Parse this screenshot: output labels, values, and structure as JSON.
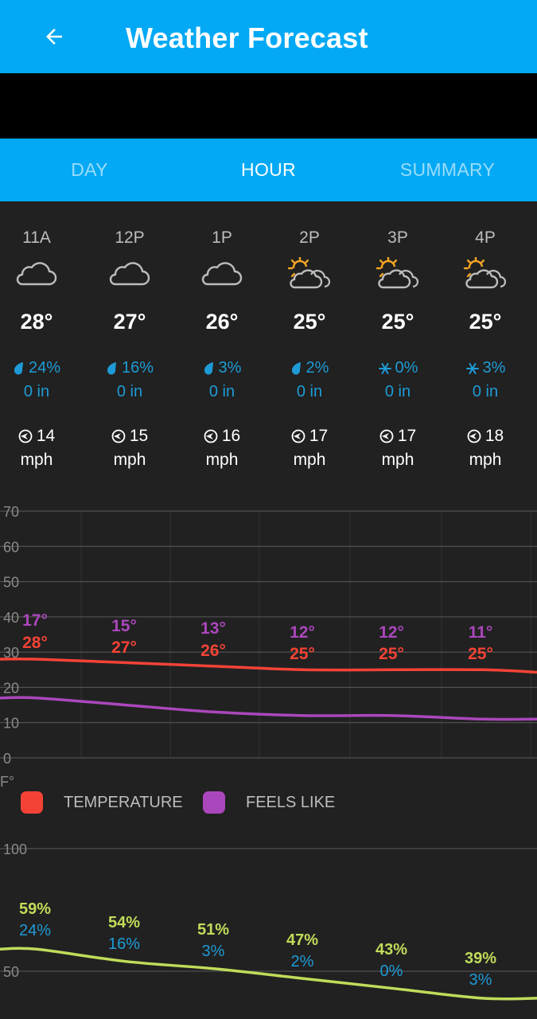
{
  "appbar": {
    "title": "Weather Forecast",
    "back_icon": "arrow-left-icon"
  },
  "tabs": [
    {
      "label": "DAY",
      "active": false
    },
    {
      "label": "HOUR",
      "active": true
    },
    {
      "label": "SUMMARY",
      "active": false
    }
  ],
  "hours": [
    {
      "time": "11A",
      "icon": "cloud-icon",
      "temp": "28°",
      "precip_type": "rain-drop-icon",
      "precip": "24%",
      "amount": "0 in",
      "wind": "14",
      "wind_unit": "mph"
    },
    {
      "time": "12P",
      "icon": "cloud-icon",
      "temp": "27°",
      "precip_type": "rain-drop-icon",
      "precip": "16%",
      "amount": "0 in",
      "wind": "15",
      "wind_unit": "mph"
    },
    {
      "time": "1P",
      "icon": "cloud-icon",
      "temp": "26°",
      "precip_type": "rain-drop-icon",
      "precip": "3%",
      "amount": "0 in",
      "wind": "16",
      "wind_unit": "mph"
    },
    {
      "time": "2P",
      "icon": "partly-sunny-icon",
      "temp": "25°",
      "precip_type": "rain-drop-icon",
      "precip": "2%",
      "amount": "0 in",
      "wind": "17",
      "wind_unit": "mph"
    },
    {
      "time": "3P",
      "icon": "partly-sunny-icon",
      "temp": "25°",
      "precip_type": "snowflake-icon",
      "precip": "0%",
      "amount": "0 in",
      "wind": "17",
      "wind_unit": "mph"
    },
    {
      "time": "4P",
      "icon": "partly-sunny-icon",
      "temp": "25°",
      "precip_type": "snowflake-icon",
      "precip": "3%",
      "amount": "0 in",
      "wind": "18",
      "wind_unit": "mph"
    }
  ],
  "colors": {
    "accent": "#03A9F4",
    "temperature": "#F44336",
    "feels_like": "#AB47BC",
    "humidity": "#C0DC5A",
    "precip": "#1E9BD6"
  },
  "chart_data": [
    {
      "type": "line",
      "ylabel": "F°",
      "ylim": [
        0,
        70
      ],
      "yticks": [
        "0",
        "10",
        "20",
        "30",
        "40",
        "50",
        "60",
        "70"
      ],
      "series": [
        {
          "name": "TEMPERATURE",
          "values": [
            28,
            27,
            26,
            25,
            25,
            25
          ],
          "labels": [
            "28°",
            "27°",
            "26°",
            "25°",
            "25°",
            "25°"
          ]
        },
        {
          "name": "FEELS LIKE",
          "values": [
            17,
            15,
            13,
            12,
            12,
            11
          ],
          "labels": [
            "17°",
            "15°",
            "13°",
            "12°",
            "12°",
            "11°"
          ]
        }
      ],
      "legend": "bottom"
    },
    {
      "type": "line",
      "yticks": [
        "50",
        "100"
      ],
      "series": [
        {
          "values": [
            59,
            54,
            51,
            47,
            43,
            39
          ],
          "labels": [
            "59%",
            "54%",
            "51%",
            "47%",
            "43%",
            "39%"
          ]
        },
        {
          "values": [
            24,
            16,
            3,
            2,
            0,
            3
          ],
          "labels": [
            "24%",
            "16%",
            "3%",
            "2%",
            "0%",
            "3%"
          ]
        }
      ]
    }
  ]
}
